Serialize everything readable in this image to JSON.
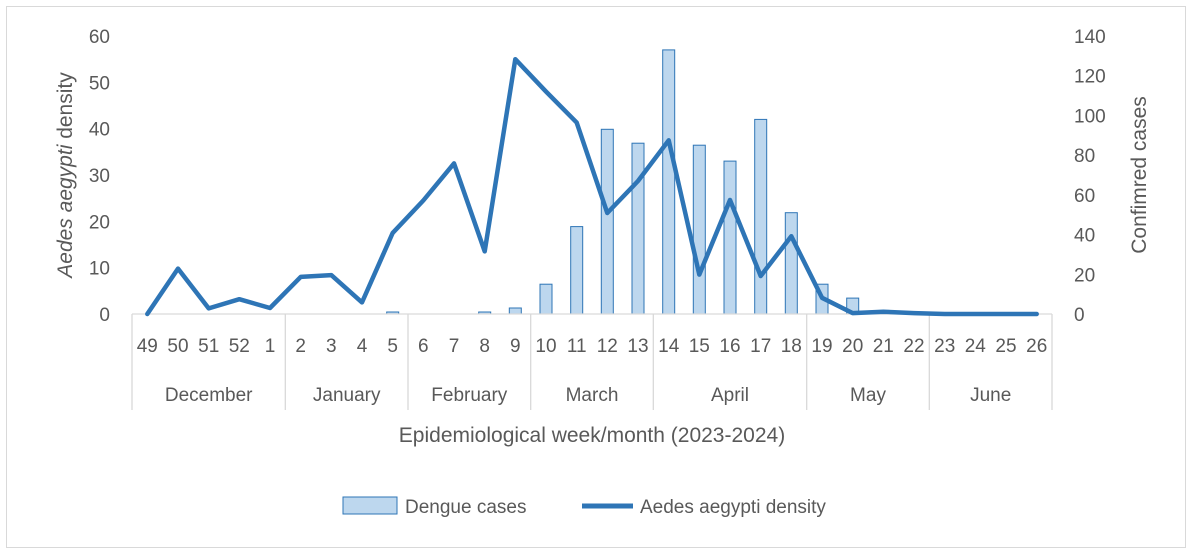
{
  "chart_data": {
    "type": "bar+line",
    "x": [
      "49",
      "50",
      "51",
      "52",
      "1",
      "2",
      "3",
      "4",
      "5",
      "6",
      "7",
      "8",
      "9",
      "10",
      "11",
      "12",
      "13",
      "14",
      "15",
      "16",
      "17",
      "18",
      "19",
      "20",
      "21",
      "22",
      "23",
      "24",
      "25",
      "26"
    ],
    "months": [
      {
        "label": "December",
        "weeks": 5
      },
      {
        "label": "January",
        "weeks": 4
      },
      {
        "label": "February",
        "weeks": 4
      },
      {
        "label": "March",
        "weeks": 4
      },
      {
        "label": "April",
        "weeks": 5
      },
      {
        "label": "May",
        "weeks": 4
      },
      {
        "label": "June",
        "weeks": 4
      }
    ],
    "series": [
      {
        "name": "Dengue cases",
        "kind": "bar",
        "axis": "right",
        "color": "#bdd7ee",
        "stroke": "#2e75b6",
        "values": [
          0,
          0,
          0,
          0,
          0,
          0,
          0,
          0,
          1,
          0,
          0,
          1,
          3,
          15,
          44,
          93,
          86,
          133,
          85,
          77,
          98,
          51,
          15,
          8,
          0,
          0,
          0,
          0,
          0,
          0
        ]
      },
      {
        "name": "Aedes aegypti density",
        "kind": "line",
        "axis": "left",
        "color": "#2e75b6",
        "values": [
          0,
          9.8,
          1.2,
          3.2,
          1.3,
          8,
          8.4,
          2.5,
          17.5,
          24.5,
          32.5,
          13.5,
          55,
          48,
          41.3,
          21.8,
          28.7,
          37.5,
          8.5,
          24.6,
          8.2,
          16.8,
          3.5,
          0.2,
          0.5,
          0.2,
          0,
          0,
          0,
          0
        ]
      }
    ],
    "ylabel_left_italic": "Aedes aegypti",
    "ylabel_left_rest": " density",
    "ylabel_right": "Confimred cases",
    "xlabel": "Epidemiological week/month (2023-2024)",
    "ylim_left": [
      0,
      60
    ],
    "ylim_right": [
      0,
      140
    ],
    "yticks_left": [
      "0",
      "10",
      "20",
      "30",
      "40",
      "50",
      "60"
    ],
    "yticks_right": [
      "0",
      "20",
      "40",
      "60",
      "80",
      "100",
      "120",
      "140"
    ],
    "grid": false,
    "legend_position": "bottom"
  }
}
